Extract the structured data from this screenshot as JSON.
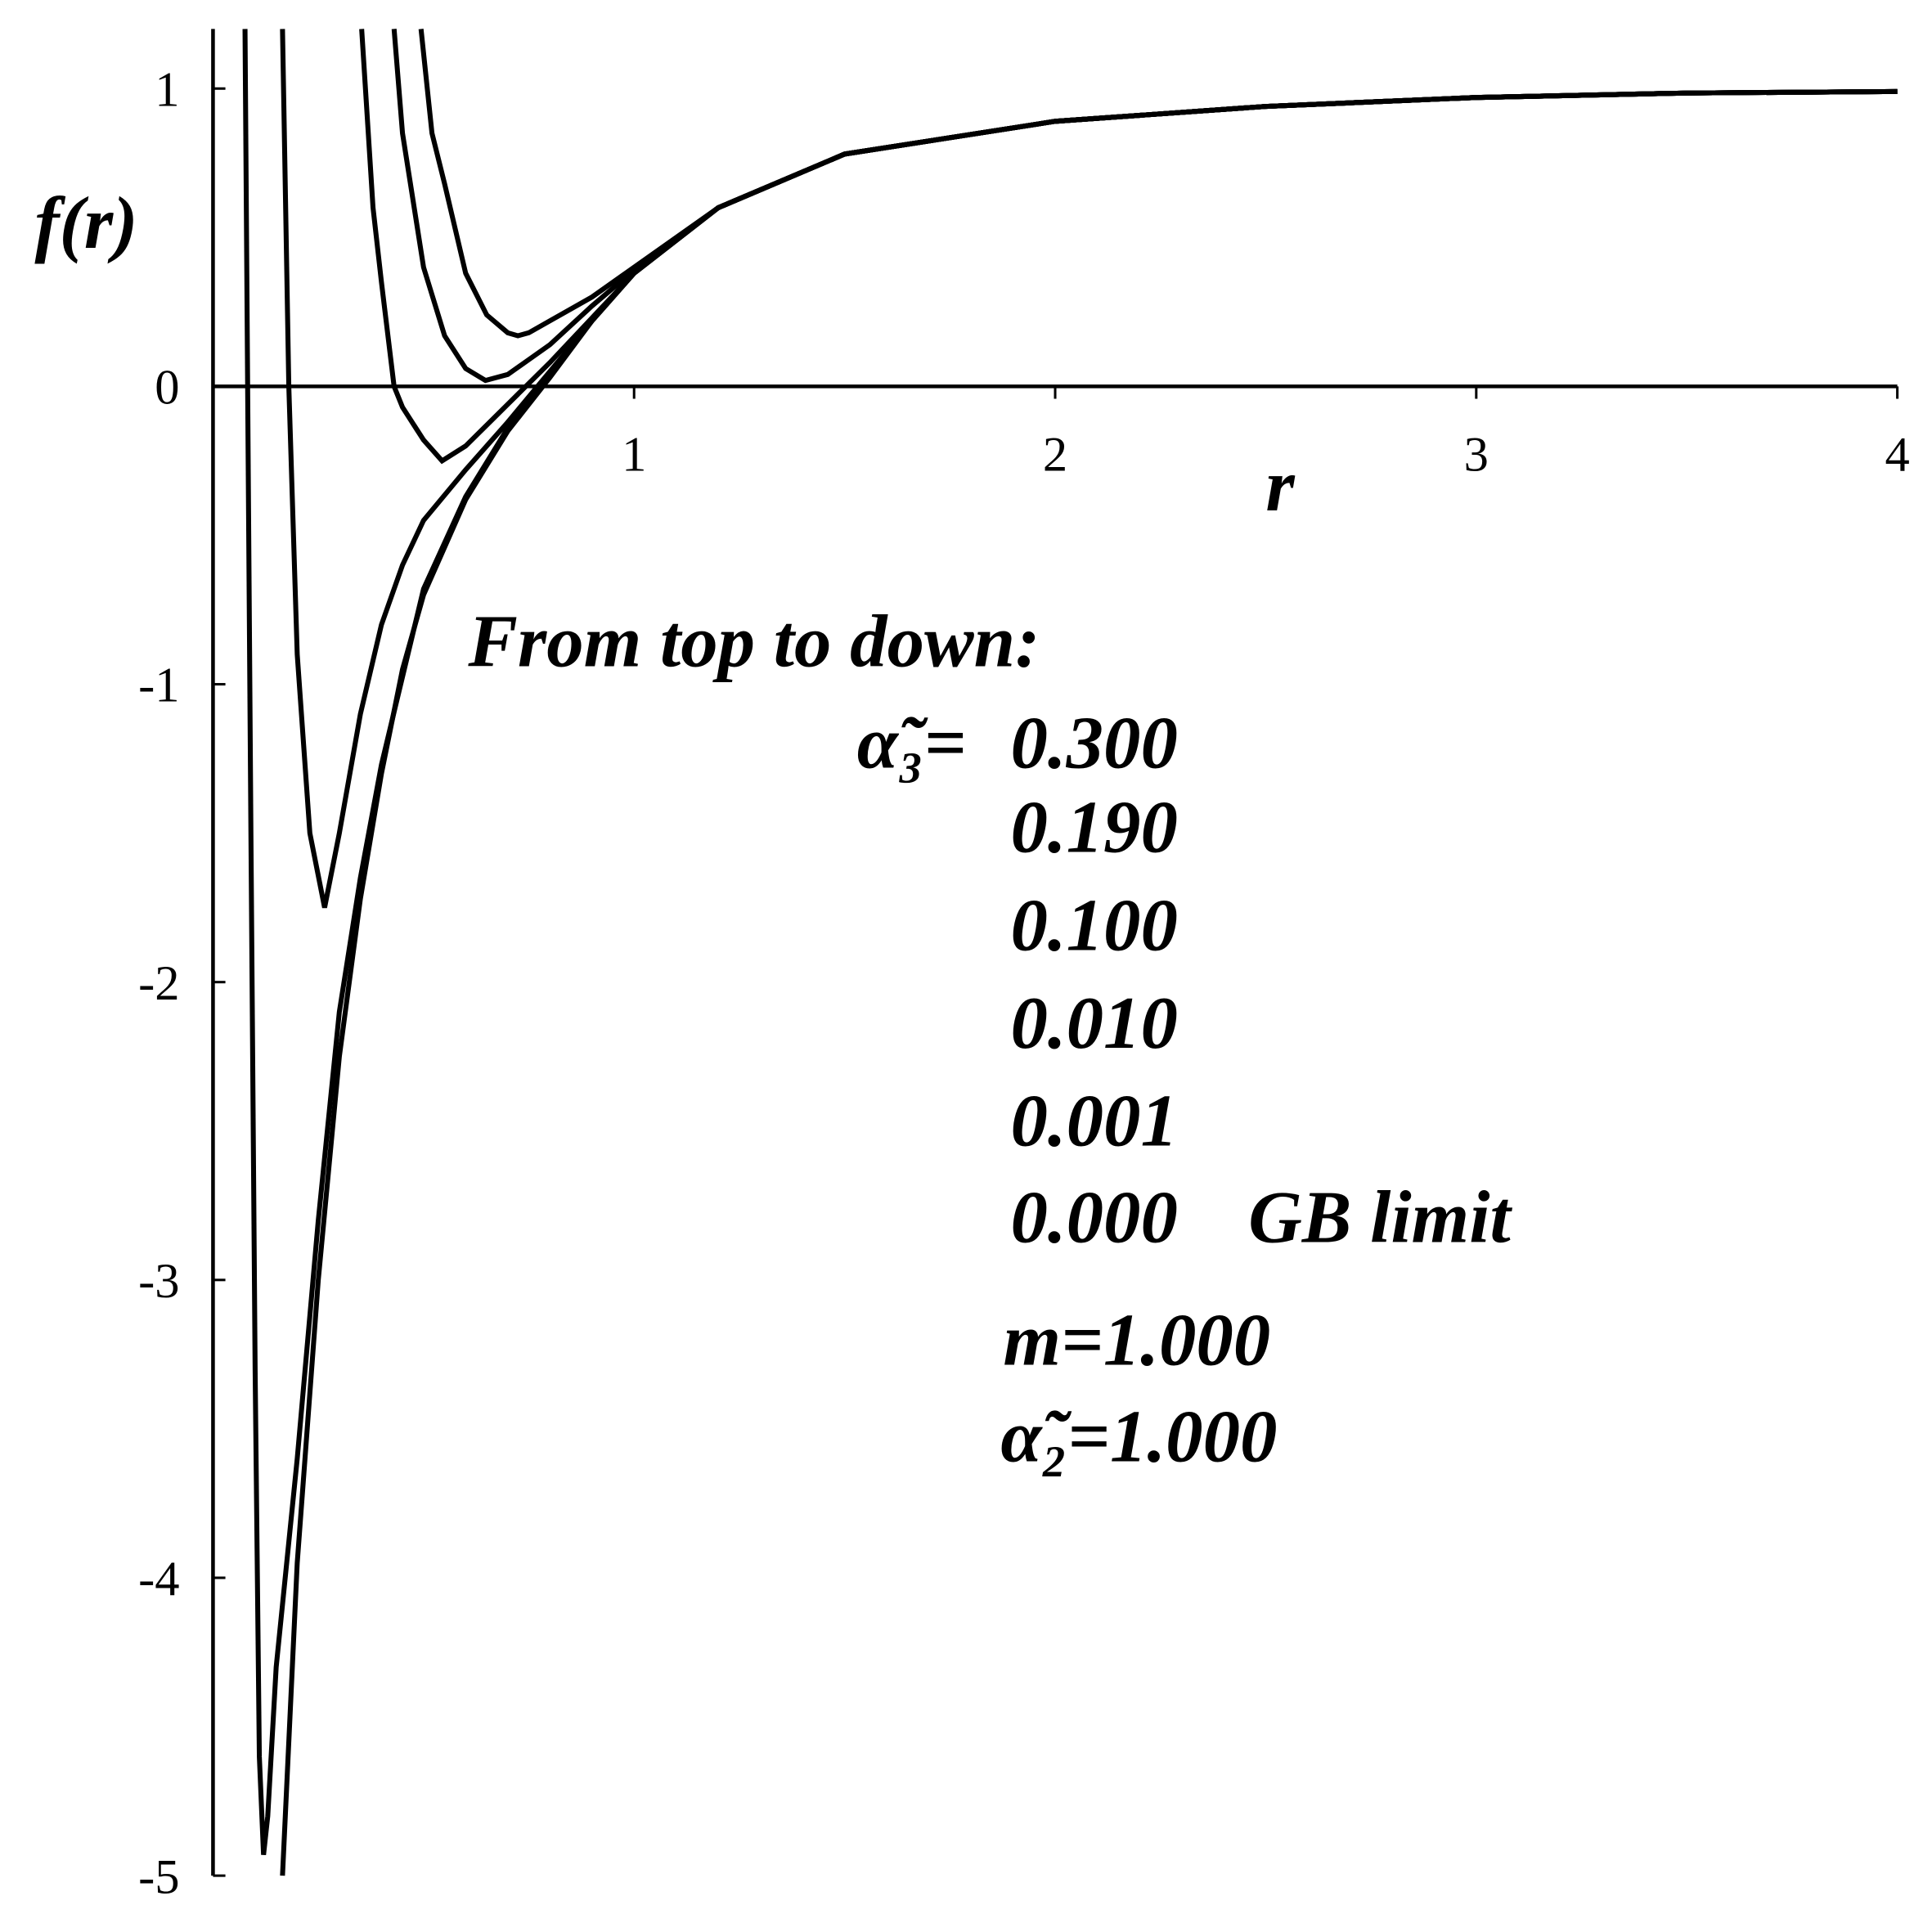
{
  "chart_data": {
    "type": "line",
    "x_label": "r",
    "y_label": "f(r)",
    "annotations": [
      "From top to down:",
      "α̃₃=",
      "GB limit",
      "m=1.000",
      "α̃₂=1.000"
    ],
    "xlim": [
      0,
      4
    ],
    "ylim": [
      -5,
      1.2
    ],
    "xticks": [
      1,
      2,
      3,
      4
    ],
    "yticks": [
      -5,
      -4,
      -3,
      -2,
      -1,
      0,
      1
    ],
    "series": [
      {
        "name": "0.300",
        "color": "#000000",
        "x": [
          0.494,
          0.52,
          0.55,
          0.6,
          0.65,
          0.7,
          0.724,
          0.75,
          0.8,
          0.9,
          1,
          1.2,
          1.5,
          2,
          2.5,
          3,
          3.5,
          4
        ],
        "values": [
          1.2,
          0.85,
          0.68,
          0.38,
          0.24,
          0.18,
          0.17,
          0.18,
          0.22,
          0.3,
          0.4,
          0.6,
          0.78,
          0.89,
          0.94,
          0.97,
          0.985,
          0.99
        ]
      },
      {
        "name": "0.190",
        "color": "#000000",
        "x": [
          0.43,
          0.45,
          0.5,
          0.55,
          0.6,
          0.647,
          0.7,
          0.8,
          0.9,
          1,
          1.2,
          1.5,
          2,
          2.5,
          3,
          3.5,
          4
        ],
        "values": [
          1.2,
          0.85,
          0.4,
          0.17,
          0.06,
          0.02,
          0.04,
          0.14,
          0.27,
          0.39,
          0.6,
          0.78,
          0.89,
          0.94,
          0.97,
          0.985,
          0.99
        ]
      },
      {
        "name": "0.100",
        "color": "#000000",
        "x": [
          0.353,
          0.38,
          0.4,
          0.43,
          0.45,
          0.5,
          0.544,
          0.6,
          0.7,
          0.8,
          0.9,
          1,
          1.2,
          1.5,
          2,
          2.5,
          3,
          3.5,
          4
        ],
        "values": [
          1.2,
          0.6,
          0.35,
          0,
          -0.07,
          -0.18,
          -0.25,
          -0.2,
          -0.06,
          0.08,
          0.23,
          0.38,
          0.6,
          0.78,
          0.89,
          0.94,
          0.97,
          0.985,
          0.99
        ]
      },
      {
        "name": "0.010",
        "color": "#000000",
        "x": [
          0.165,
          0.18,
          0.2,
          0.23,
          0.265,
          0.3,
          0.35,
          0.4,
          0.45,
          0.5,
          0.6,
          0.7,
          0.8,
          0.9,
          1,
          1.2,
          1.5,
          2,
          2.5,
          3,
          3.5,
          4
        ],
        "values": [
          1.2,
          0,
          -0.9,
          -1.5,
          -1.75,
          -1.5,
          -1.1,
          -0.8,
          -0.6,
          -0.45,
          -0.28,
          -0.12,
          0.05,
          0.22,
          0.38,
          0.6,
          0.78,
          0.89,
          0.94,
          0.97,
          0.985,
          0.99
        ]
      },
      {
        "name": "0.001",
        "color": "#000000",
        "x": [
          0.076,
          0.09,
          0.1,
          0.11,
          0.12,
          0.13,
          0.15,
          0.2,
          0.25,
          0.3,
          0.35,
          0.4,
          0.5,
          0.6,
          0.7,
          0.8,
          0.9,
          1,
          1.2,
          1.5,
          2,
          2.5,
          3,
          3.5,
          4
        ],
        "values": [
          1.2,
          -1.5,
          -3.3,
          -4.6,
          -4.93,
          -4.8,
          -4.3,
          -3.6,
          -2.8,
          -2.1,
          -1.65,
          -1.27,
          -0.68,
          -0.37,
          -0.14,
          0.04,
          0.22,
          0.38,
          0.6,
          0.78,
          0.89,
          0.94,
          0.97,
          0.985,
          0.99
        ]
      },
      {
        "name": "0.000",
        "color": "#000000",
        "x": [
          0.165,
          0.2,
          0.25,
          0.3,
          0.35,
          0.4,
          0.45,
          0.5,
          0.6,
          0.7,
          0.8,
          0.9,
          1,
          1.2,
          1.5,
          2,
          2.5,
          3,
          3.5,
          4
        ],
        "values": [
          -5,
          -3.95,
          -3.0,
          -2.25,
          -1.72,
          -1.3,
          -0.95,
          -0.7,
          -0.38,
          -0.15,
          0.03,
          0.22,
          0.38,
          0.6,
          0.78,
          0.89,
          0.94,
          0.97,
          0.985,
          0.99
        ]
      }
    ]
  }
}
